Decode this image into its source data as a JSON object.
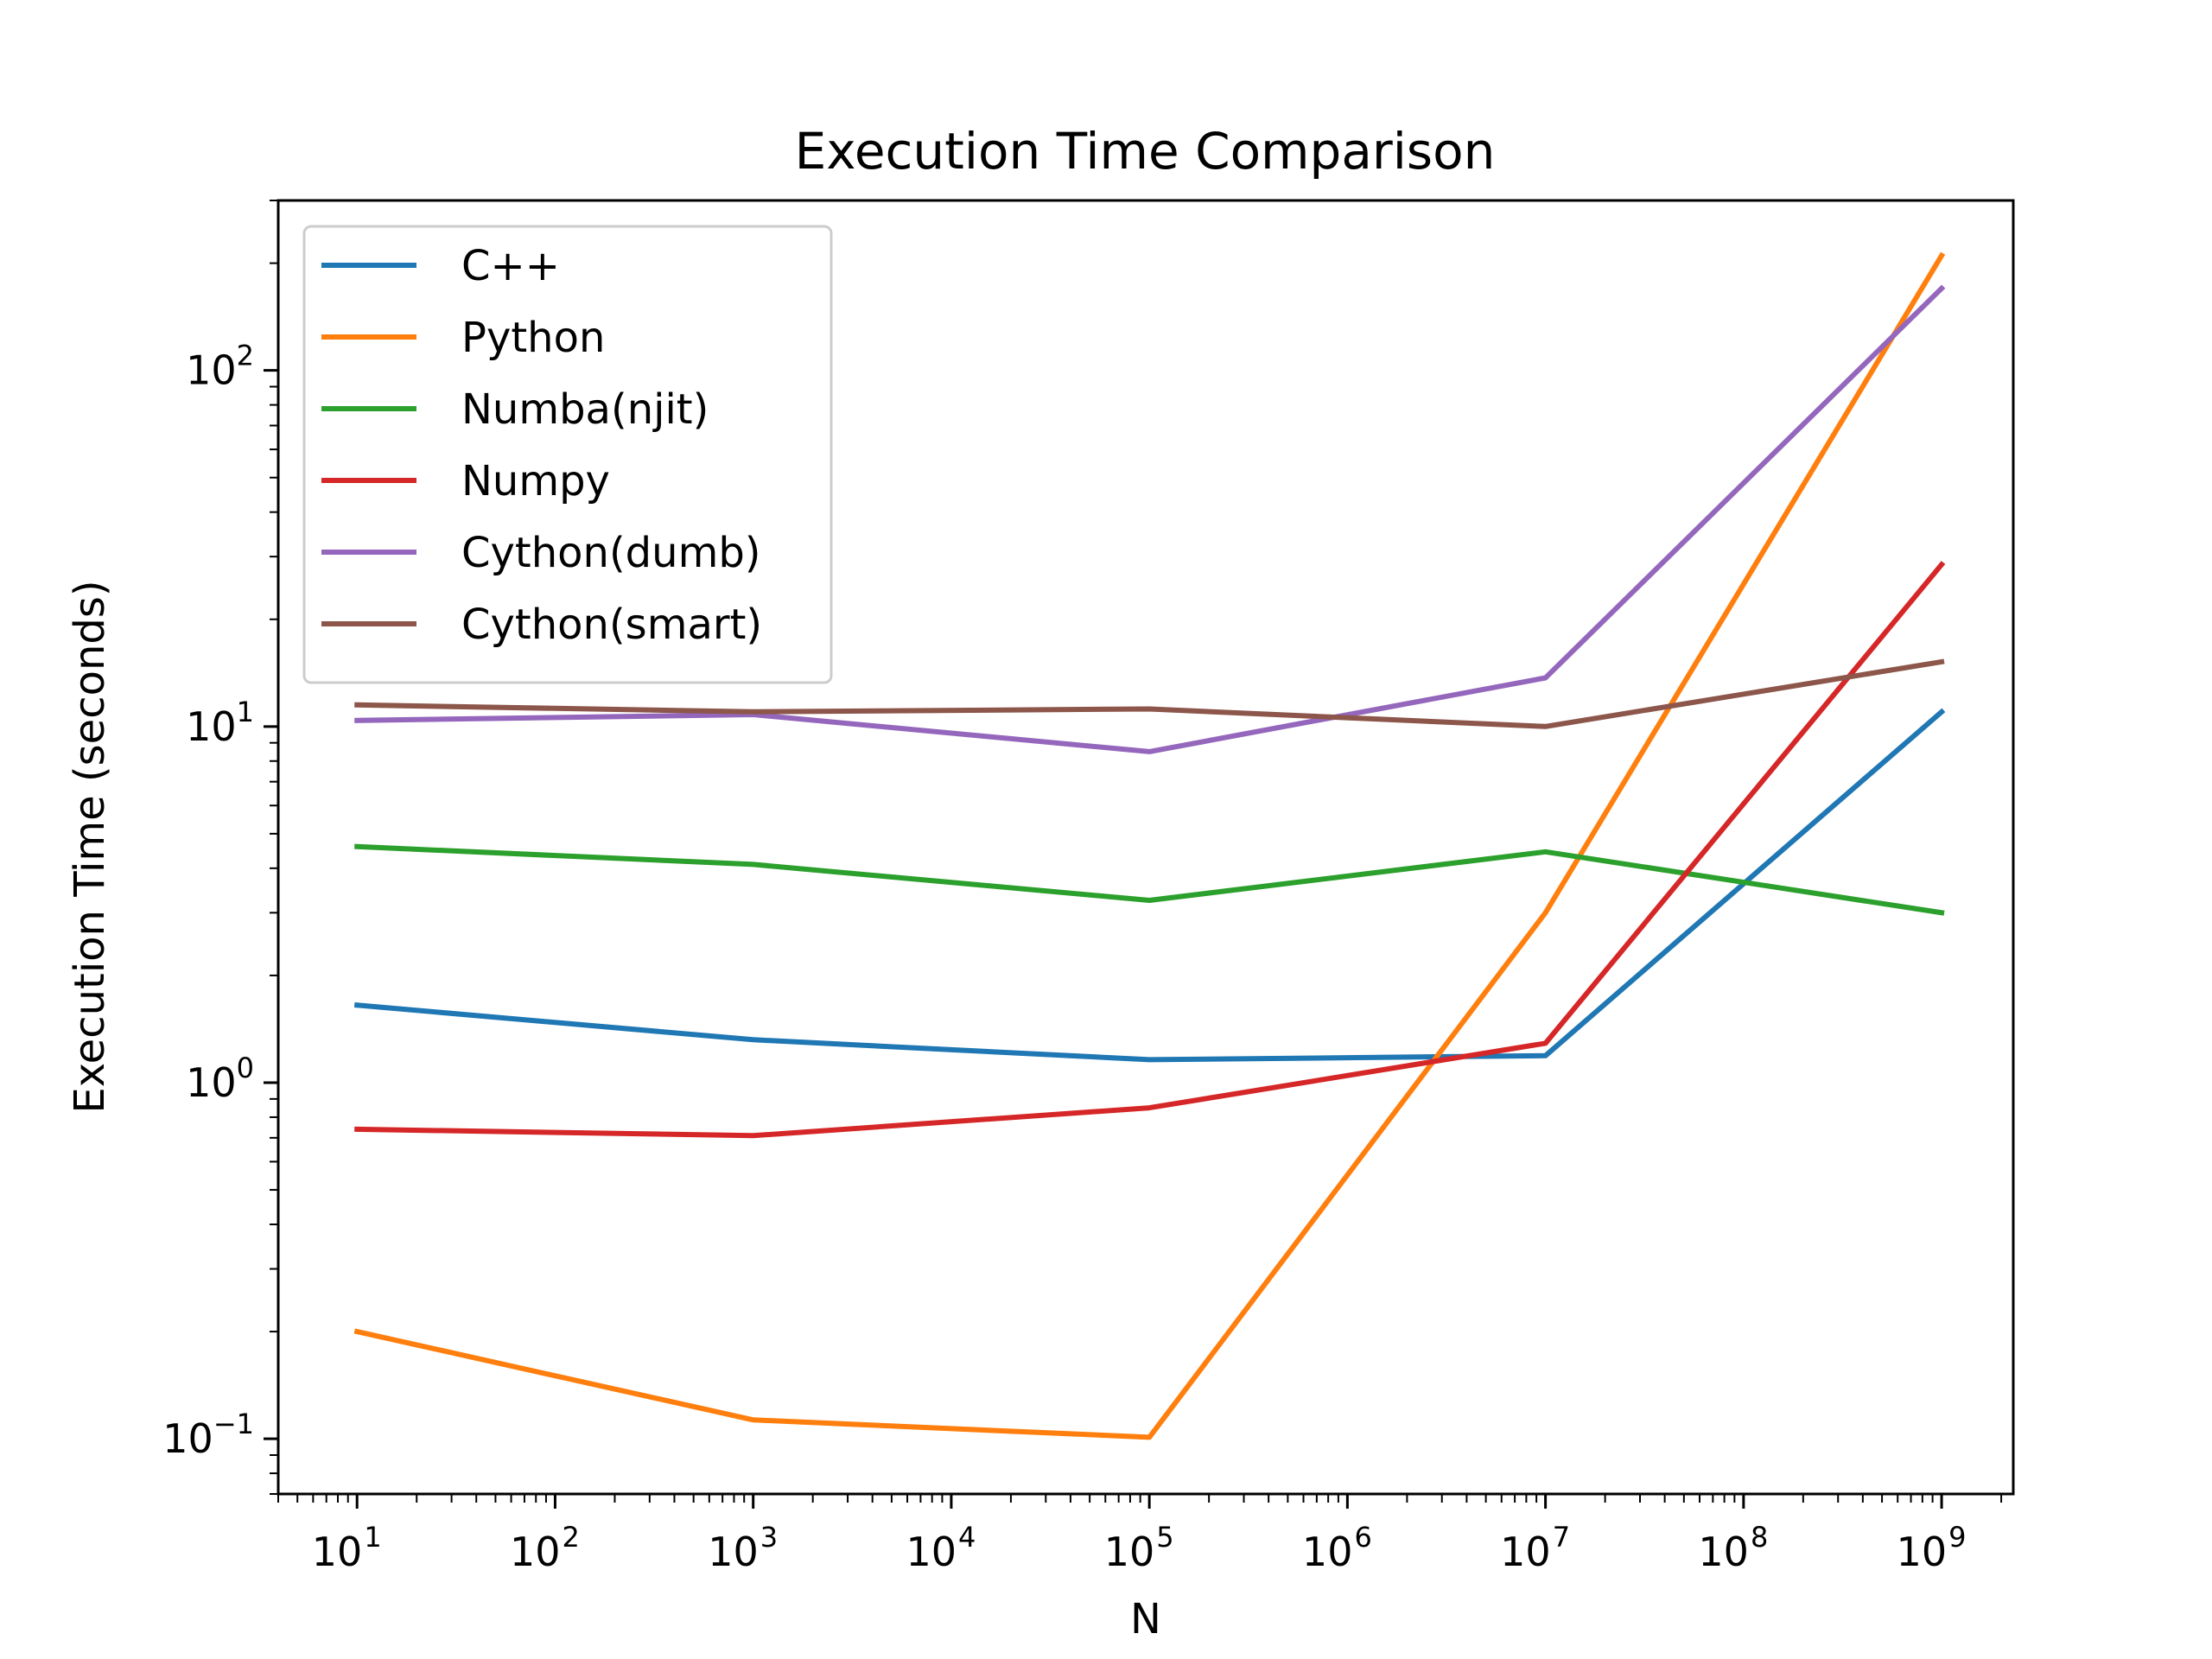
{
  "chart_data": {
    "type": "line",
    "title": "Execution Time Comparison",
    "xlabel": "N",
    "ylabel": "Execution Time (seconds)",
    "xscale": "log",
    "yscale": "log",
    "xlim": [
      4,
      2300000000.0
    ],
    "ylim": [
      0.07,
      300
    ],
    "grid": false,
    "legend_position": "top-left",
    "x": [
      10,
      1000,
      100000,
      10000000,
      1000000000
    ],
    "xticks": [
      {
        "value": 10,
        "base": "10",
        "exp": "1"
      },
      {
        "value": 100,
        "base": "10",
        "exp": "2"
      },
      {
        "value": 1000,
        "base": "10",
        "exp": "3"
      },
      {
        "value": 10000,
        "base": "10",
        "exp": "4"
      },
      {
        "value": 100000,
        "base": "10",
        "exp": "5"
      },
      {
        "value": 1000000,
        "base": "10",
        "exp": "6"
      },
      {
        "value": 10000000,
        "base": "10",
        "exp": "7"
      },
      {
        "value": 100000000,
        "base": "10",
        "exp": "8"
      },
      {
        "value": 1000000000,
        "base": "10",
        "exp": "9"
      }
    ],
    "yticks": [
      {
        "value": 0.1,
        "base": "10",
        "exp": "−1"
      },
      {
        "value": 1,
        "base": "10",
        "exp": "0"
      },
      {
        "value": 10,
        "base": "10",
        "exp": "1"
      },
      {
        "value": 100,
        "base": "10",
        "exp": "2"
      }
    ],
    "series": [
      {
        "name": "C++",
        "color": "#1f77b4",
        "values": [
          1.65,
          1.32,
          1.16,
          1.19,
          11.0
        ]
      },
      {
        "name": "Python",
        "color": "#ff7f0e",
        "values": [
          0.2,
          0.113,
          0.101,
          3.0,
          210
        ]
      },
      {
        "name": "Numba(njit)",
        "color": "#2ca02c",
        "values": [
          4.6,
          4.1,
          3.25,
          4.45,
          3.0
        ]
      },
      {
        "name": "Numpy",
        "color": "#d62728",
        "values": [
          0.74,
          0.71,
          0.85,
          1.29,
          28.5
        ]
      },
      {
        "name": "Cython(dumb)",
        "color": "#9467bd",
        "values": [
          10.4,
          10.8,
          8.5,
          13.7,
          170
        ]
      },
      {
        "name": "Cython(smart)",
        "color": "#8c564b",
        "values": [
          11.5,
          11.0,
          11.2,
          10.0,
          15.2
        ]
      }
    ]
  }
}
